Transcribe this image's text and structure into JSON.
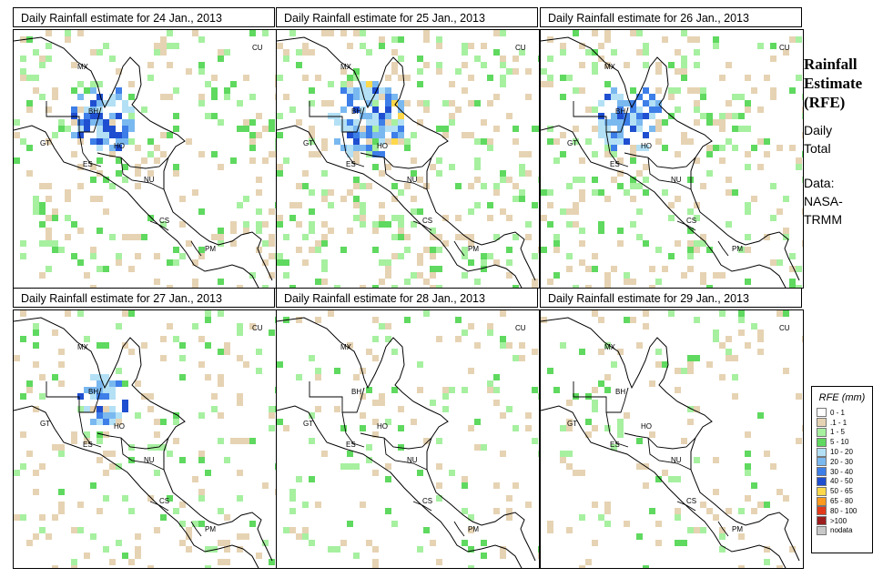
{
  "panels": [
    {
      "title": "Daily Rainfall estimate for  24 Jan., 2013",
      "seed": 24,
      "level": 3
    },
    {
      "title": "Daily Rainfall estimate for  25 Jan., 2013",
      "seed": 25,
      "level": 4
    },
    {
      "title": "Daily Rainfall estimate for  26 Jan., 2013",
      "seed": 26,
      "level": 3
    },
    {
      "title": "Daily Rainfall estimate for  27 Jan., 2013",
      "seed": 27,
      "level": 2
    },
    {
      "title": "Daily Rainfall estimate for  28 Jan., 2013",
      "seed": 28,
      "level": 1
    },
    {
      "title": "Daily Rainfall estimate for  29 Jan., 2013",
      "seed": 29,
      "level": 1
    }
  ],
  "country_labels": [
    "CU",
    "MX",
    "BH",
    "GT",
    "HO",
    "ES",
    "NU",
    "CS",
    "PM"
  ],
  "side": {
    "title_line1": "Rainfall",
    "title_line2": "Estimate",
    "title_line3": "(RFE)",
    "daily_line1": "Daily",
    "daily_line2": "Total",
    "data_line1": "Data:",
    "data_line2": "NASA-",
    "data_line3": "TRMM"
  },
  "legend": {
    "title": "RFE (mm)",
    "items": [
      {
        "label": "0 - 1",
        "color": "#ffffff"
      },
      {
        "label": ".1 - 1",
        "color": "#e6d3b3"
      },
      {
        "label": "1 - 5",
        "color": "#a6f0a0"
      },
      {
        "label": "5 - 10",
        "color": "#5fd95f"
      },
      {
        "label": "10 - 20",
        "color": "#b3e0f5"
      },
      {
        "label": "20 - 30",
        "color": "#7ab8f0"
      },
      {
        "label": "30 - 40",
        "color": "#3d7ee8"
      },
      {
        "label": "40 - 50",
        "color": "#1f4fd0"
      },
      {
        "label": "50 - 65",
        "color": "#ffd84a"
      },
      {
        "label": "65 - 80",
        "color": "#ff9a1f"
      },
      {
        "label": "80 - 100",
        "color": "#e23a1a"
      },
      {
        "label": ">100",
        "color": "#9b1d1d"
      },
      {
        "label": "nodata",
        "color": "#c8c8c8"
      }
    ]
  }
}
